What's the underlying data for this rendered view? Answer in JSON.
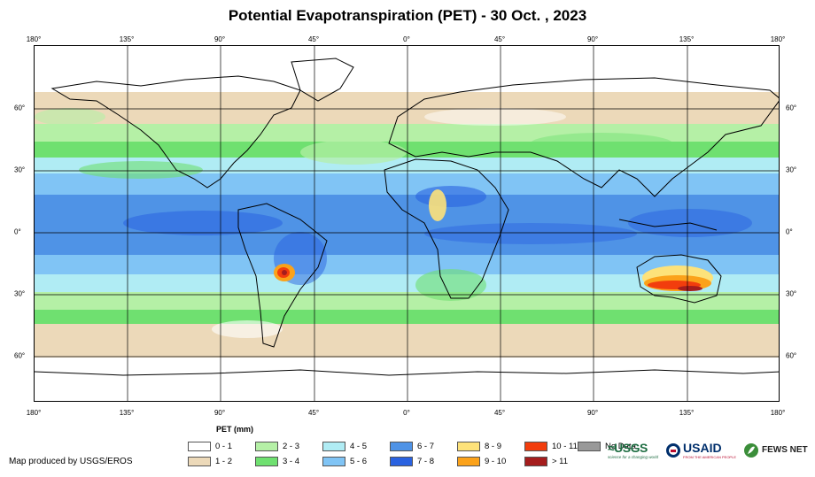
{
  "title": "Potential Evapotranspiration (PET) - 30 Oct. , 2023",
  "axes": {
    "lon_ticks": [
      "180°",
      "135°",
      "90°",
      "45°",
      "0°",
      "45°",
      "90°",
      "135°",
      "180°"
    ],
    "lat_ticks": [
      "60°",
      "30°",
      "0°",
      "30°",
      "60°"
    ]
  },
  "legend": {
    "title": "PET (mm)",
    "items": [
      {
        "label": "0 - 1",
        "color": "#ffffff"
      },
      {
        "label": "1 - 2",
        "color": "#ecd9b9"
      },
      {
        "label": "2 - 3",
        "color": "#b5f0a6"
      },
      {
        "label": "3 - 4",
        "color": "#6fe070"
      },
      {
        "label": "4 - 5",
        "color": "#b0ecf4"
      },
      {
        "label": "5 - 6",
        "color": "#80c4f5"
      },
      {
        "label": "6 - 7",
        "color": "#4f93e6"
      },
      {
        "label": "7 - 8",
        "color": "#2a62e0"
      },
      {
        "label": "8 - 9",
        "color": "#fde27a"
      },
      {
        "label": "9 - 10",
        "color": "#fba21a"
      },
      {
        "label": "10 - 11",
        "color": "#f23d0d"
      },
      {
        "label": "> 11",
        "color": "#a51d1d"
      },
      {
        "label": "No Data",
        "color": "#999999"
      }
    ]
  },
  "footer": {
    "producer": "Map produced by USGS/EROS",
    "logos": {
      "usgs": "≈USGS",
      "usgs_tagline": "science for a changing world",
      "usaid": "USAID",
      "usaid_tagline": "FROM THE AMERICAN PEOPLE",
      "fews": "FEWS NET"
    }
  }
}
